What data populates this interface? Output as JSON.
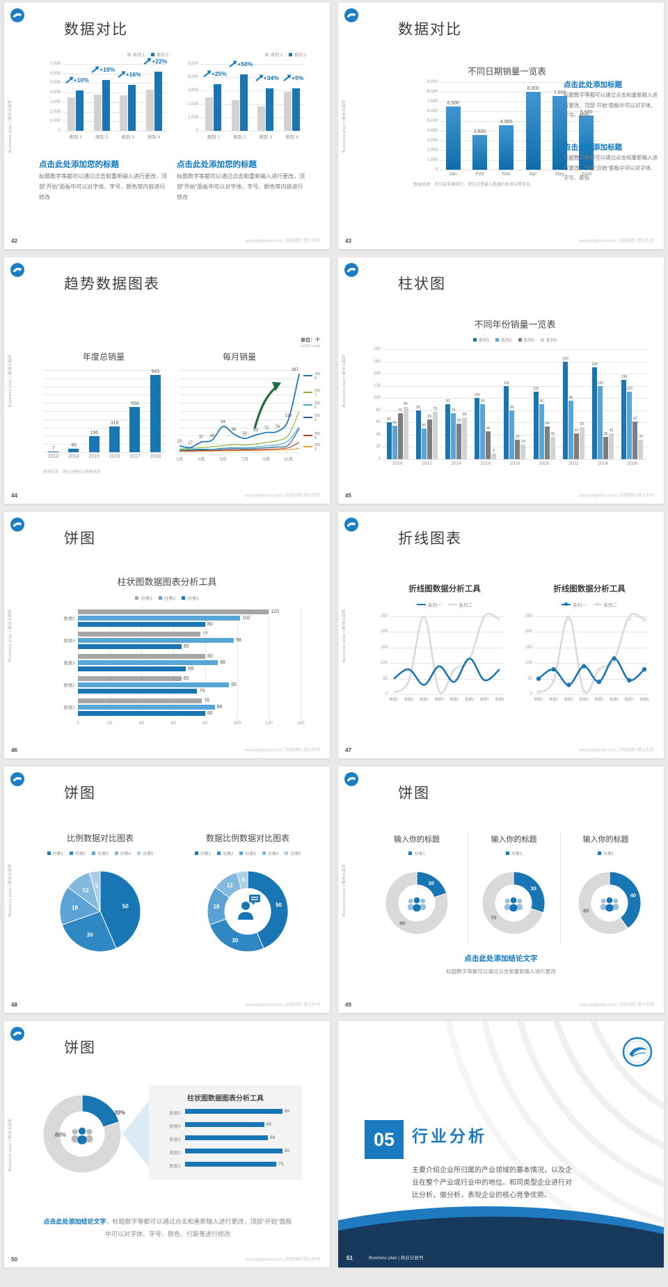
{
  "footer_url": "www.pptgenius.com | 内部资料 禁止外传",
  "sidebar_text": "Business plan | 商业计划书",
  "colors": {
    "accent": "#1a7ac0",
    "bar_blue": "#1876b5",
    "bar_blue_light": "#5aa5d8",
    "bar_gray": "#d2d2d2",
    "bar_gray_dark": "#7e7e7e",
    "bar_gray_mid": "#a6a6a6",
    "heading_blue": "#0e78c2",
    "line_gray": "#d9d9d9",
    "navy": "#16395c",
    "pie_blues": [
      "#1876b5",
      "#2f87c3",
      "#5ba3d4",
      "#82b9de",
      "#abcfe9"
    ],
    "donut_gray": "#d9d9d9",
    "arrow_green": "#1e6b3e"
  },
  "slide42": {
    "page": "42",
    "title": "数据对比",
    "charts": [
      {
        "type": "bar",
        "legend": [
          "系列 1",
          "系列 2"
        ],
        "ymax": 7000,
        "yticks": [
          "7,000",
          "6,000",
          "5,000",
          "4,000",
          "3,000",
          "2,000",
          "1,000",
          "0"
        ],
        "categories": [
          "类别 1",
          "类别 2",
          "类别 3",
          "类别 4"
        ],
        "series": [
          {
            "name": "系列 1",
            "values": [
              3500,
              3800,
              3700,
              4300
            ]
          },
          {
            "name": "系列 2",
            "values": [
              4200,
              5300,
              4800,
              6200
            ]
          }
        ],
        "growth_labels": [
          "+10%",
          "+18%",
          "+16%",
          "+22%"
        ]
      },
      {
        "type": "bar",
        "legend": [
          "系列 1",
          "系列 2"
        ],
        "ymax": 5000,
        "yticks": [
          "5,000",
          "4,000",
          "3,000",
          "2,000",
          "1,000",
          "0"
        ],
        "categories": [
          "类别 1",
          "类别 2",
          "类别 3",
          "类别 4"
        ],
        "series": [
          {
            "name": "系列 1",
            "values": [
              2500,
              2300,
              1800,
              2900
            ]
          },
          {
            "name": "系列 2",
            "values": [
              3500,
              4200,
              3200,
              3200
            ]
          }
        ],
        "growth_labels": [
          "+25%",
          "+50%",
          "+34%",
          "+5%"
        ]
      }
    ],
    "block_title": "点击此处添加您的标题",
    "block_body": "标题数字等都可以通过点击和重新输入进行更改，顶部“开始”面板中可以对字体、字号、颜色等内容进行修改"
  },
  "slide43": {
    "page": "43",
    "title": "数据对比",
    "chart": {
      "type": "bar",
      "title": "不同日期销量一览表",
      "ymax": 9000,
      "yticks": [
        "9,000",
        "8,000",
        "7,000",
        "6,000",
        "5,000",
        "4,000",
        "3,000",
        "2,000",
        "1,000",
        "0"
      ],
      "categories": [
        "Jan",
        "Feb",
        "Mar",
        "Apr",
        "May",
        "June"
      ],
      "values": [
        6500,
        3600,
        4560,
        8000,
        7600,
        5600
      ],
      "labels": [
        "6,500",
        "3,600",
        "4,560",
        "8,000",
        "7,600",
        "5,600"
      ]
    },
    "source_note": "数据来源：尼尔森零售研究，请在这里输入数据的来源详情信息",
    "blocks": [
      {
        "title": "点击此处添加标题",
        "body": "标题数字等都可以通过点击和重新输入进行更改，顶部“开始”面板中可以对字体、字号、颜色"
      },
      {
        "title": "点击此处添加标题",
        "body": "标题数字等都可以通过点击和重新输入进行更改，顶部“开始”面板中可以对字体、字号、颜色"
      }
    ]
  },
  "slide44": {
    "page": "44",
    "title": "趋势数据图表",
    "unit_label": "单位：个",
    "unit_sub": "in'000 units",
    "bar_chart": {
      "type": "bar",
      "title": "年度总销量",
      "categories": [
        "2013",
        "2014",
        "2015",
        "2016",
        "2017",
        "2018"
      ],
      "values": [
        7,
        45,
        196,
        318,
        554,
        943
      ],
      "ymax": 1000
    },
    "line_chart": {
      "type": "line",
      "title": "每月销量",
      "x_labels": [
        "1月",
        "3月",
        "5月",
        "7月",
        "9月",
        "11月"
      ],
      "ymax": 300,
      "series": [
        {
          "name": "2018",
          "color": "#1f7ab8",
          "values": [
            23,
            17,
            37,
            44,
            94,
            66,
            50,
            63,
            72,
            76,
            118,
            287
          ]
        },
        {
          "name": "2017",
          "color": "#8cb53f",
          "values": [
            12,
            14,
            17,
            20,
            24,
            28,
            26,
            30,
            36,
            42,
            62,
            150
          ]
        },
        {
          "name": "2016",
          "color": "#4bacc6",
          "values": [
            9,
            10,
            12,
            11,
            15,
            17,
            16,
            19,
            23,
            27,
            42,
            92
          ]
        },
        {
          "name": "2015",
          "color": "#2e5f8a",
          "values": [
            7,
            8,
            9,
            10,
            11,
            13,
            12,
            14,
            16,
            19,
            26,
            86
          ]
        },
        {
          "name": "2014",
          "color": "#b0402e",
          "values": [
            5,
            5,
            6,
            6,
            7,
            8,
            8,
            9,
            10,
            12,
            16,
            36
          ]
        },
        {
          "name": "2013",
          "color": "#f0a030",
          "values": [
            3,
            3,
            4,
            4,
            5,
            5,
            6,
            6,
            7,
            8,
            9,
            14
          ]
        }
      ],
      "point_labels": [
        "23",
        "17",
        "37",
        "44",
        "94",
        "66",
        "50",
        "63",
        "72",
        "76",
        "118",
        "287"
      ]
    },
    "source_note": "数据来源：请在这里标注数据来源"
  },
  "slide45": {
    "page": "45",
    "title": "柱状图",
    "chart": {
      "type": "bar",
      "title": "不同年份销量一览表",
      "legend": [
        "系列1",
        "系列2",
        "系列3",
        "系列4"
      ],
      "ymax": 180,
      "yticks": [
        "180",
        "160",
        "140",
        "120",
        "100",
        "80",
        "60",
        "40",
        "20",
        "0"
      ],
      "categories": [
        "2010",
        "2012",
        "2014",
        "2016",
        "2018",
        "2020",
        "2022",
        "2024",
        "2026"
      ],
      "series": [
        {
          "name": "系列1",
          "values": [
            60,
            80,
            90,
            100,
            120,
            110,
            160,
            150,
            130
          ]
        },
        {
          "name": "系列2",
          "values": [
            55,
            50,
            75,
            90,
            80,
            90,
            96,
            120,
            110
          ]
        },
        {
          "name": "系列3",
          "values": [
            75,
            65,
            58,
            46,
            32,
            54,
            42,
            36,
            62
          ]
        },
        {
          "name": "系列4",
          "values": [
            85,
            78,
            68,
            9,
            24,
            36,
            53,
            42,
            32
          ]
        }
      ]
    }
  },
  "slide46": {
    "page": "46",
    "title": "饼图",
    "chart": {
      "type": "bar",
      "title": "柱状图数据图表分析工具",
      "legend": [
        "分类3",
        "分类2",
        "分类1"
      ],
      "categories": [
        "数据5",
        "数据4",
        "数据3",
        "数据2",
        "数据1"
      ],
      "series": [
        {
          "name": "分类3",
          "values": [
            120,
            77,
            80,
            65,
            78
          ]
        },
        {
          "name": "分类2",
          "values": [
            102,
            98,
            88,
            95,
            86
          ]
        },
        {
          "name": "分类1",
          "values": [
            80,
            65,
            68,
            75,
            80
          ]
        }
      ],
      "xticks": [
        "0",
        "20",
        "40",
        "60",
        "80",
        "100",
        "120",
        "140"
      ],
      "xmax": 140
    }
  },
  "slide47": {
    "page": "47",
    "title": "折线图表",
    "charts": [
      {
        "type": "line",
        "title": "折线图数据分析工具",
        "legend": [
          "系列一",
          "系列二"
        ],
        "yticks": [
          "250",
          "200",
          "150",
          "100",
          "50",
          "0"
        ],
        "ymax": 250,
        "x_labels": [
          "数据1",
          "数据2",
          "数据3",
          "数据4",
          "数据5",
          "数据6",
          "数据7",
          "数据8"
        ],
        "series": [
          {
            "name": "系列一",
            "values": [
              50,
              80,
              30,
              90,
              40,
              115,
              45,
              80
            ]
          },
          {
            "name": "系列二",
            "values": [
              5,
              45,
              250,
              10,
              80,
              110,
              250,
              240
            ]
          }
        ],
        "markers": false
      },
      {
        "type": "line",
        "title": "折线图数据分析工具",
        "legend": [
          "系列一",
          "系列二"
        ],
        "yticks": [
          "250",
          "200",
          "150",
          "100",
          "50",
          "0"
        ],
        "ymax": 250,
        "x_labels": [
          "数据1",
          "数据2",
          "数据3",
          "数据4",
          "数据5",
          "数据6",
          "数据7",
          "数据8"
        ],
        "series": [
          {
            "name": "系列一",
            "values": [
              50,
              80,
              30,
              90,
              40,
              115,
              45,
              80
            ]
          },
          {
            "name": "系列二",
            "values": [
              5,
              45,
              250,
              10,
              80,
              110,
              250,
              240
            ]
          }
        ],
        "markers": true
      }
    ]
  },
  "slide48": {
    "page": "48",
    "title": "饼图",
    "charts": [
      {
        "type": "pie",
        "title": "比例数据对比图表",
        "legend": [
          "分类1",
          "分类2",
          "分类3",
          "分类4",
          "分类5"
        ],
        "values": [
          50,
          30,
          18,
          12,
          5
        ],
        "donut": false
      },
      {
        "type": "pie",
        "title": "数据比例数据对比图表",
        "legend": [
          "分类1",
          "分类2",
          "分类3",
          "分类4",
          "分类5"
        ],
        "values": [
          50,
          30,
          18,
          12,
          5
        ],
        "donut": true
      }
    ]
  },
  "slide49": {
    "page": "49",
    "title": "饼图",
    "donuts": [
      {
        "type": "pie",
        "title": "输入你的标题",
        "legend": "分类1",
        "blue": 20,
        "gray": 80
      },
      {
        "type": "pie",
        "title": "输入你的标题",
        "legend": "分类1",
        "blue": 30,
        "gray": 70
      },
      {
        "type": "pie",
        "title": "输入你的标题",
        "legend": "分类1",
        "blue": 40,
        "gray": 60
      }
    ],
    "conclusion_title": "点击此处添加结论文字",
    "conclusion_body": "标题数字等都可以通过点击和重新输入进行更改"
  },
  "slide50": {
    "page": "50",
    "title": "饼图",
    "donut": {
      "type": "pie",
      "gray": 80,
      "blue": 20,
      "gray_label": "80%",
      "blue_label": "20%"
    },
    "panel": {
      "title": "柱状图数据图表分析工具",
      "max": 80,
      "rows": [
        {
          "label": "数据5",
          "value": 80
        },
        {
          "label": "数据4",
          "value": 65
        },
        {
          "label": "数据3",
          "value": 68
        },
        {
          "label": "数据2",
          "value": 80
        },
        {
          "label": "数据1",
          "value": 75
        }
      ]
    },
    "conclusion_title": "点击此处添加结论文字",
    "conclusion_body": "，标题数字等都可以通过点击和重新输入进行更改，顶部“开始”面板中可以对字体、字号、颜色、行距等进行修改"
  },
  "slide51": {
    "page": "51",
    "number": "05",
    "title": "行业分析",
    "body": "主要介绍企业所归属的产业领域的基本情况，以及企业在整个产业或行业中的地位。和同类型企业进行对比分析，做分析，表现企业的核心竞争优势。",
    "footer_brand": "Business plan | 商业计划书"
  }
}
